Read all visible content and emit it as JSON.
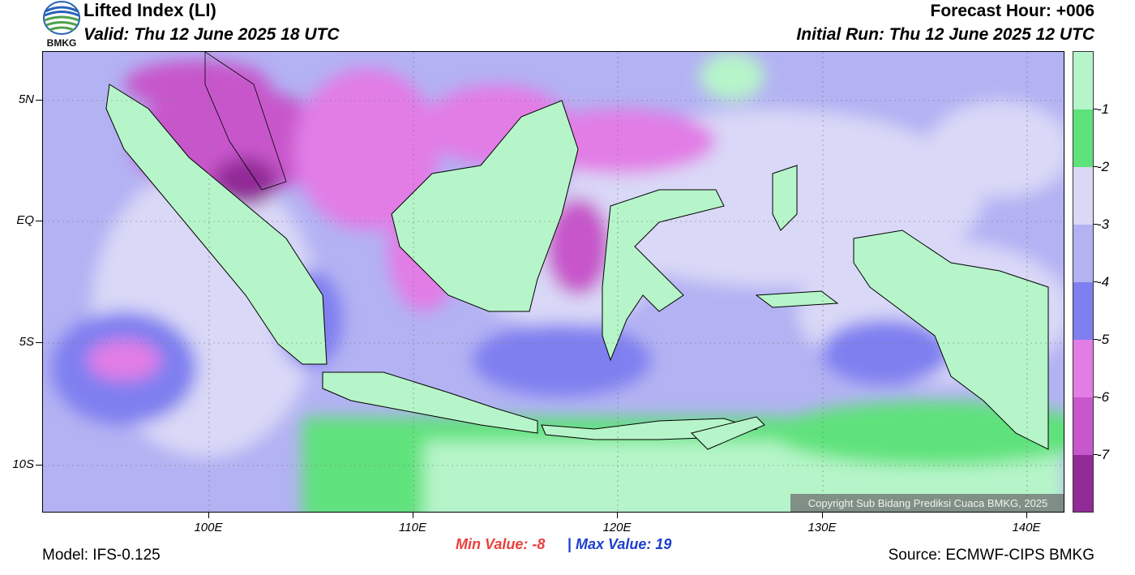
{
  "header": {
    "title": "Lifted Index (LI)",
    "valid": "Valid: Thu 12 June 2025 18 UTC",
    "forecast_hour": "Forecast Hour: +006",
    "initial_run": "Initial Run: Thu 12 June 2025 12 UTC",
    "logo_text": "BMKG"
  },
  "axes": {
    "lat_labels": [
      "5N",
      "EQ",
      "5S",
      "10S"
    ],
    "lon_labels": [
      "100E",
      "110E",
      "120E",
      "130E",
      "140E"
    ]
  },
  "colorbar": {
    "labels": [
      "-1",
      "-2",
      "-3",
      "-4",
      "-5",
      "-6",
      "-7"
    ],
    "colors": [
      "#b6f5c9",
      "#5ee27b",
      "#d9d8f7",
      "#b3b2f3",
      "#7f7ff0",
      "#e27de6",
      "#c757cb",
      "#922a97"
    ]
  },
  "stats": {
    "min_label": "Min Value:  -8",
    "separator": "|",
    "max_label": "Max Value:  19"
  },
  "footer": {
    "model": "Model: IFS-0.125",
    "source": "Source: ECMWF-CIPS BMKG",
    "copyright": "Copyright Sub Bidang Prediksi Cuaca BMKG, 2025"
  }
}
